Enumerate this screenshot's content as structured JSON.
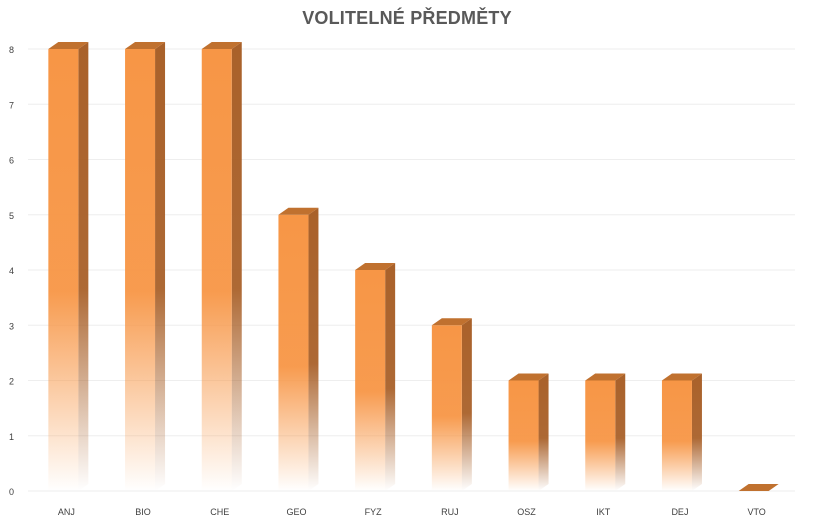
{
  "chart_data": {
    "type": "bar",
    "title": "VOLITELNÉ PŘEDMĚTY",
    "xlabel": "",
    "ylabel": "",
    "categories": [
      "ANJ",
      "BIO",
      "CHE",
      "GEO",
      "FYZ",
      "RUJ",
      "OSZ",
      "IKT",
      "DEJ",
      "VTO"
    ],
    "values": [
      8,
      8,
      8,
      5,
      4,
      3,
      2,
      2,
      2,
      0
    ],
    "ylim": [
      0,
      8
    ],
    "yticks": [
      0,
      1,
      2,
      3,
      4,
      5,
      6,
      7,
      8
    ],
    "grid": true,
    "legend": "none",
    "style": "3d-column-gradient"
  },
  "colors": {
    "bar_front": "#f79646",
    "bar_side": "#a9612a",
    "bar_top": "#c0712f",
    "grid": "#eeeeee",
    "axis_text": "#404040",
    "title": "#595959"
  }
}
